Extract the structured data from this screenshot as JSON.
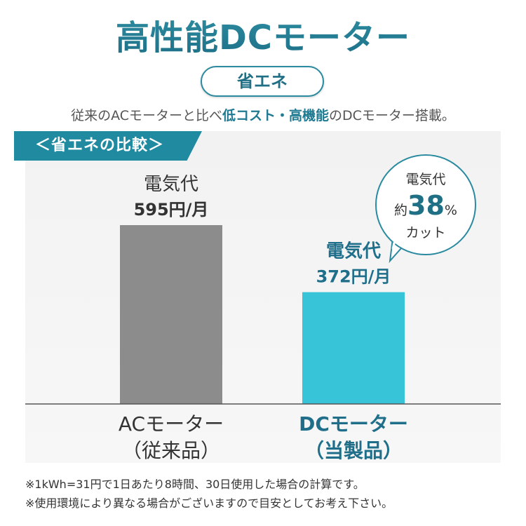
{
  "title": "高性能DCモーター",
  "badge": "省エネ",
  "subtitle": {
    "before": "従来のACモーターと比べ",
    "highlight": "低コスト・高機能",
    "after": "のDCモーター搭載。"
  },
  "section_label": "＜省エネの比較＞",
  "chart_data": {
    "type": "bar",
    "categories": [
      "ACモーター\n（従来品）",
      "DCモーター\n（当製品）"
    ],
    "category_lines": [
      [
        "ACモーター",
        "（従来品）"
      ],
      [
        "DCモーター",
        "（当製品）"
      ]
    ],
    "values": [
      595,
      372
    ],
    "value_label_prefix": "電気代",
    "value_labels": [
      "595円/月",
      "372円/月"
    ],
    "unit": "円/月",
    "ylim": [
      0,
      700
    ],
    "grid": false,
    "bar_colors": [
      "#8c8c8c",
      "#38c4d8"
    ],
    "label_colors": [
      "#333333",
      "#1f6f8a"
    ],
    "annotation": {
      "line1": "電気代",
      "prefix": "約",
      "percent": "38",
      "percent_sign": "%",
      "line3": "カット"
    }
  },
  "footnotes": [
    "※1kWh=31円で1日あたり8時間、30日使用した場合の計算です。",
    "※使用環境により異なる場合がございますので目安としてお考え下さい。"
  ],
  "colors": {
    "accent": "#1f8aa0",
    "title": "#2a8aa0",
    "ac_bar": "#8c8c8c",
    "dc_bar": "#38c4d8"
  }
}
